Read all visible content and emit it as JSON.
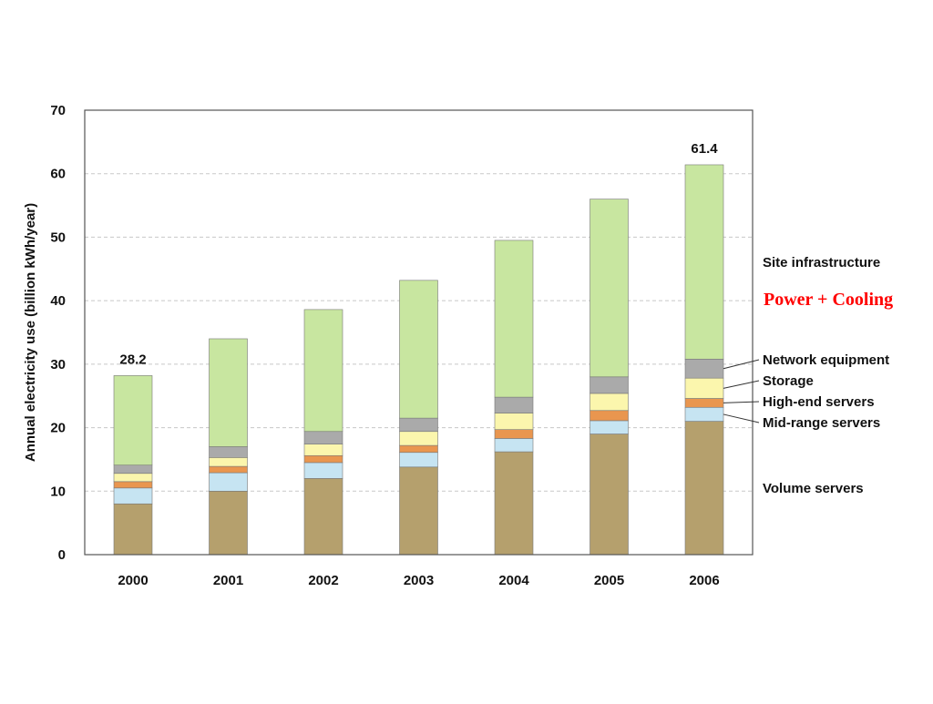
{
  "chart_data": {
    "type": "bar",
    "stacked": true,
    "ylabel": "Annual electricity use (billion kWh/year)",
    "ylim": [
      0,
      70
    ],
    "yticks": [
      0,
      10,
      20,
      30,
      40,
      50,
      60,
      70
    ],
    "grid": true,
    "legend_placement": "right",
    "categories": [
      "2000",
      "2001",
      "2002",
      "2003",
      "2004",
      "2005",
      "2006"
    ],
    "series": [
      {
        "name": "Volume servers",
        "color": "#b5a06d",
        "values": [
          8.0,
          10.0,
          12.0,
          13.8,
          16.2,
          19.0,
          21.0
        ]
      },
      {
        "name": "Mid-range servers",
        "color": "#c6e4f2",
        "values": [
          2.5,
          2.9,
          2.5,
          2.3,
          2.1,
          2.1,
          2.2
        ]
      },
      {
        "name": "High-end servers",
        "color": "#e9964f",
        "values": [
          1.0,
          1.0,
          1.1,
          1.1,
          1.4,
          1.6,
          1.4
        ]
      },
      {
        "name": "Storage",
        "color": "#fbf6ad",
        "values": [
          1.3,
          1.4,
          1.8,
          2.2,
          2.6,
          2.7,
          3.2
        ]
      },
      {
        "name": "Network equipment",
        "color": "#aaaaaa",
        "values": [
          1.3,
          1.7,
          2.0,
          2.1,
          2.5,
          2.6,
          3.0
        ]
      },
      {
        "name": "Site infrastructure",
        "color": "#c8e6a0",
        "values": [
          14.1,
          17.0,
          19.2,
          21.7,
          24.7,
          28.0,
          30.6
        ]
      }
    ],
    "annotations": [
      {
        "category": "2000",
        "text": "28.2"
      },
      {
        "category": "2006",
        "text": "61.4"
      }
    ],
    "side_note": {
      "text": "Power + Cooling",
      "color": "#ff0000"
    }
  }
}
